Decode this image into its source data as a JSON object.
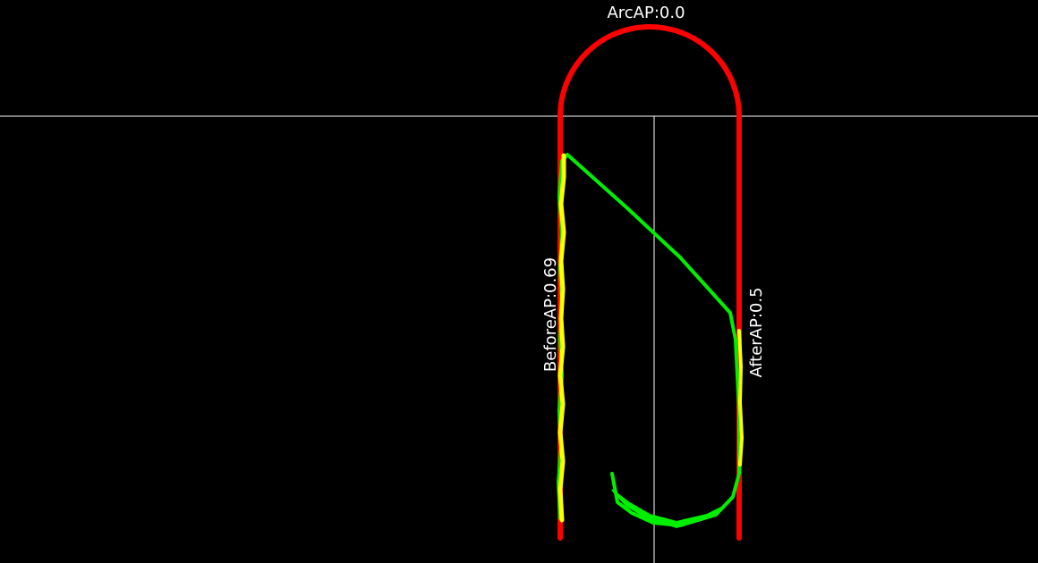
{
  "labels": {
    "arc": "ArcAP:0.0",
    "before": "BeforeAP:0.69",
    "after": "AfterAP:0.5"
  },
  "colors": {
    "background": "#000000",
    "reference_track": "#ff0000",
    "before_track": "#ffff00",
    "after_track": "#00ee00",
    "crosshair": "#ffffff",
    "label_text": "#ffffff"
  }
}
